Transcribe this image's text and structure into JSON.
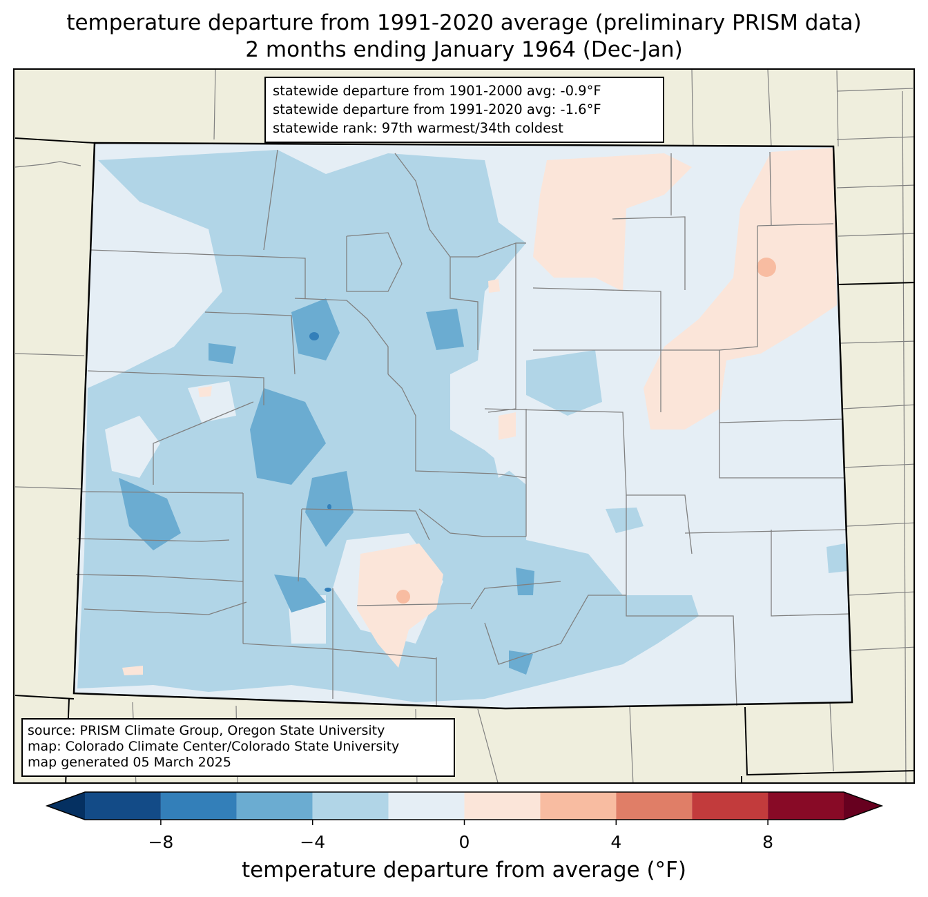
{
  "title": {
    "line1": "temperature departure from 1991-2020 average (preliminary PRISM data)",
    "line2": "2 months ending January 1964 (Dec-Jan)"
  },
  "stats_box": {
    "line1": "statewide departure from 1901-2000 avg: -0.9°F",
    "line2": "statewide departure from 1991-2020 avg: -1.6°F",
    "line3": "statewide rank: 97th warmest/34th coldest"
  },
  "source_box": {
    "line1": "source: PRISM Climate Group, Oregon State University",
    "line2": "map: Colorado Climate Center/Colorado State University",
    "line3": "map generated 05 March 2025"
  },
  "colorbar": {
    "label": "temperature departure from average (°F)",
    "ticks": [
      "−8",
      "−4",
      "0",
      "4",
      "8"
    ],
    "tick_values": [
      -8,
      -4,
      0,
      4,
      8
    ],
    "range": [
      -10,
      10
    ],
    "bins": [
      {
        "from": -10,
        "to": -8,
        "color": "#134b87"
      },
      {
        "from": -8,
        "to": -6,
        "color": "#337fb9"
      },
      {
        "from": -6,
        "to": -4,
        "color": "#6bacd1"
      },
      {
        "from": -4,
        "to": -2,
        "color": "#b1d5e7"
      },
      {
        "from": -2,
        "to": 0,
        "color": "#e5eef5"
      },
      {
        "from": 0,
        "to": 2,
        "color": "#fbe5d9"
      },
      {
        "from": 2,
        "to": 4,
        "color": "#f8bca1"
      },
      {
        "from": 4,
        "to": 6,
        "color": "#e07e67"
      },
      {
        "from": 6,
        "to": 8,
        "color": "#c23b3c"
      },
      {
        "from": 8,
        "to": 10,
        "color": "#880a26"
      }
    ],
    "under_color": "#053061",
    "over_color": "#67001f"
  },
  "colors": {
    "land_outside": "#efeedd",
    "county_lines": "#808080",
    "state_lines": "#000000"
  }
}
